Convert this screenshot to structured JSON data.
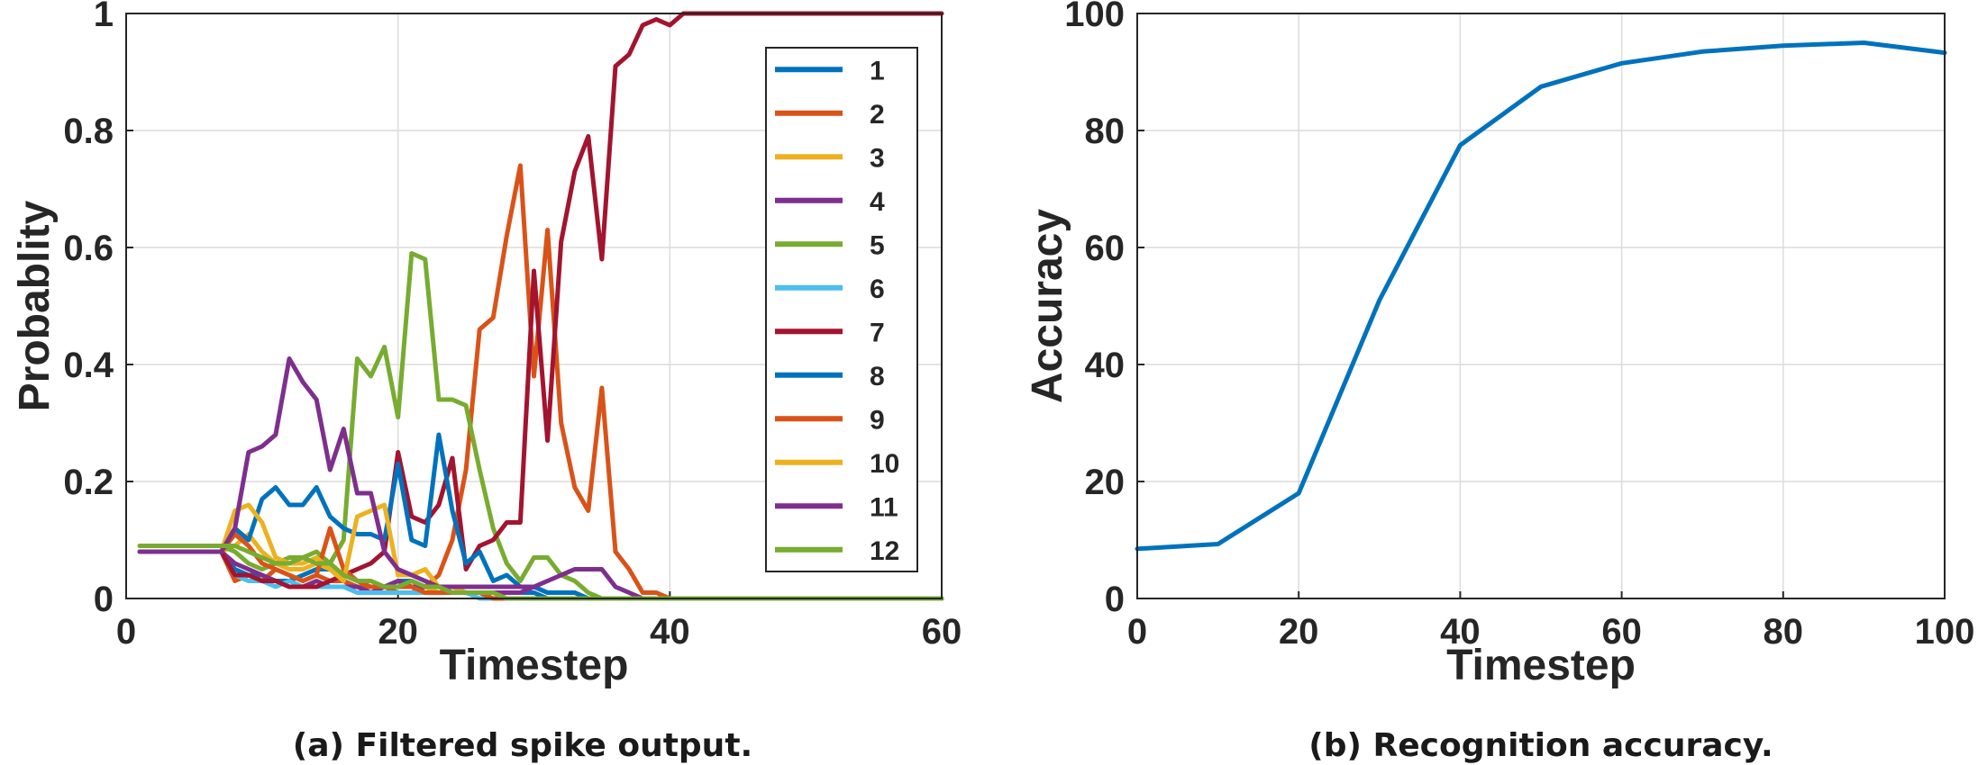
{
  "chart_data": [
    {
      "type": "line",
      "caption": "(a) Filtered spike output.",
      "xlabel": "Timestep",
      "ylabel": "Probablity",
      "xlim": [
        0,
        60
      ],
      "ylim": [
        0,
        1
      ],
      "xticks": [
        "0",
        "20",
        "40",
        "60"
      ],
      "yticks": [
        "0",
        "0.2",
        "0.4",
        "0.6",
        "0.8",
        "1"
      ],
      "grid": true,
      "legend_position": "top-right",
      "x": [
        1,
        2,
        3,
        4,
        5,
        6,
        7,
        8,
        9,
        10,
        11,
        12,
        13,
        14,
        15,
        16,
        17,
        18,
        19,
        20,
        21,
        22,
        23,
        24,
        25,
        26,
        27,
        28,
        29,
        30,
        31,
        32,
        33,
        34,
        35,
        36,
        37,
        38,
        39,
        40,
        41,
        42,
        43,
        44,
        45,
        46,
        47,
        48,
        49,
        50,
        51,
        52,
        53,
        54,
        55,
        56,
        57,
        58,
        59,
        60
      ],
      "series": [
        {
          "name": "1",
          "color": "#0072BD",
          "values": [
            0.08,
            0.08,
            0.08,
            0.08,
            0.08,
            0.08,
            0.08,
            0.05,
            0.04,
            0.04,
            0.03,
            0.03,
            0.04,
            0.05,
            0.05,
            0.03,
            0.02,
            0.02,
            0.02,
            0.03,
            0.03,
            0.02,
            0.02,
            0.01,
            0.01,
            0.01,
            0.01,
            0.01,
            0.01,
            0.01,
            0,
            0,
            0,
            0,
            0,
            0,
            0,
            0,
            0,
            0,
            0,
            0,
            0,
            0,
            0,
            0,
            0,
            0,
            0,
            0,
            0,
            0,
            0,
            0,
            0,
            0,
            0,
            0,
            0,
            0
          ]
        },
        {
          "name": "2",
          "color": "#D95319",
          "values": [
            0.08,
            0.08,
            0.08,
            0.08,
            0.08,
            0.08,
            0.08,
            0.03,
            0.04,
            0.03,
            0.05,
            0.04,
            0.03,
            0.04,
            0.03,
            0.03,
            0.02,
            0.02,
            0.02,
            0.01,
            0.01,
            0.02,
            0.04,
            0.1,
            0.22,
            0.46,
            0.48,
            0.62,
            0.74,
            0.38,
            0.63,
            0.3,
            0.19,
            0.15,
            0.36,
            0.08,
            0.05,
            0.01,
            0.01,
            0,
            0,
            0,
            0,
            0,
            0,
            0,
            0,
            0,
            0,
            0,
            0,
            0,
            0,
            0,
            0,
            0,
            0,
            0,
            0,
            0
          ]
        },
        {
          "name": "3",
          "color": "#EDB120",
          "values": [
            0.08,
            0.08,
            0.08,
            0.08,
            0.08,
            0.08,
            0.08,
            0.09,
            0.11,
            0.08,
            0.06,
            0.05,
            0.05,
            0.06,
            0.05,
            0.04,
            0.03,
            0.03,
            0.02,
            0.02,
            0.02,
            0.02,
            0.01,
            0.01,
            0.01,
            0.01,
            0,
            0,
            0,
            0,
            0,
            0,
            0,
            0,
            0,
            0,
            0,
            0,
            0,
            0,
            0,
            0,
            0,
            0,
            0,
            0,
            0,
            0,
            0,
            0,
            0,
            0,
            0,
            0,
            0,
            0,
            0,
            0,
            0,
            0
          ]
        },
        {
          "name": "4",
          "color": "#7E2F8E",
          "values": [
            0.08,
            0.08,
            0.08,
            0.08,
            0.08,
            0.08,
            0.08,
            0.06,
            0.05,
            0.04,
            0.03,
            0.02,
            0.02,
            0.03,
            0.02,
            0.02,
            0.02,
            0.01,
            0.02,
            0.03,
            0.02,
            0.02,
            0.02,
            0.01,
            0.01,
            0.01,
            0.01,
            0.01,
            0.01,
            0.02,
            0.01,
            0.01,
            0.01,
            0,
            0,
            0,
            0,
            0,
            0,
            0,
            0,
            0,
            0,
            0,
            0,
            0,
            0,
            0,
            0,
            0,
            0,
            0,
            0,
            0,
            0,
            0,
            0,
            0,
            0,
            0
          ]
        },
        {
          "name": "5",
          "color": "#77AC30",
          "values": [
            0.09,
            0.09,
            0.09,
            0.09,
            0.09,
            0.09,
            0.09,
            0.08,
            0.06,
            0.05,
            0.06,
            0.07,
            0.07,
            0.08,
            0.06,
            0.1,
            0.41,
            0.38,
            0.43,
            0.31,
            0.59,
            0.58,
            0.34,
            0.34,
            0.33,
            0.22,
            0.12,
            0.06,
            0.03,
            0.07,
            0.07,
            0.04,
            0.03,
            0.01,
            0,
            0,
            0,
            0,
            0,
            0,
            0,
            0,
            0,
            0,
            0,
            0,
            0,
            0,
            0,
            0,
            0,
            0,
            0,
            0,
            0,
            0,
            0,
            0,
            0,
            0
          ]
        },
        {
          "name": "6",
          "color": "#4DBEEE",
          "values": [
            0.08,
            0.08,
            0.08,
            0.08,
            0.08,
            0.08,
            0.08,
            0.04,
            0.03,
            0.03,
            0.02,
            0.03,
            0.02,
            0.02,
            0.02,
            0.02,
            0.01,
            0.01,
            0.01,
            0.01,
            0.01,
            0.01,
            0.01,
            0.01,
            0.01,
            0,
            0,
            0,
            0,
            0,
            0,
            0,
            0,
            0,
            0,
            0,
            0,
            0,
            0,
            0,
            0,
            0,
            0,
            0,
            0,
            0,
            0,
            0,
            0,
            0,
            0,
            0,
            0,
            0,
            0,
            0,
            0,
            0,
            0,
            0
          ]
        },
        {
          "name": "7",
          "color": "#A2142F",
          "values": [
            0.08,
            0.08,
            0.08,
            0.08,
            0.08,
            0.08,
            0.08,
            0.04,
            0.04,
            0.03,
            0.03,
            0.02,
            0.02,
            0.02,
            0.03,
            0.04,
            0.05,
            0.06,
            0.08,
            0.25,
            0.14,
            0.13,
            0.16,
            0.24,
            0.05,
            0.09,
            0.1,
            0.13,
            0.13,
            0.56,
            0.27,
            0.61,
            0.73,
            0.79,
            0.58,
            0.91,
            0.93,
            0.98,
            0.99,
            0.98,
            1,
            1,
            1,
            1,
            1,
            1,
            1,
            1,
            1,
            1,
            1,
            1,
            1,
            1,
            1,
            1,
            1,
            1,
            1,
            1
          ]
        },
        {
          "name": "8",
          "color": "#0072BD",
          "values": [
            0.08,
            0.08,
            0.08,
            0.08,
            0.08,
            0.08,
            0.08,
            0.12,
            0.1,
            0.17,
            0.19,
            0.16,
            0.16,
            0.19,
            0.14,
            0.12,
            0.11,
            0.11,
            0.1,
            0.23,
            0.1,
            0.09,
            0.28,
            0.15,
            0.06,
            0.08,
            0.03,
            0.04,
            0.02,
            0.02,
            0.01,
            0.01,
            0.01,
            0,
            0,
            0,
            0,
            0,
            0,
            0,
            0,
            0,
            0,
            0,
            0,
            0,
            0,
            0,
            0,
            0,
            0,
            0,
            0,
            0,
            0,
            0,
            0,
            0,
            0,
            0
          ]
        },
        {
          "name": "9",
          "color": "#D95319",
          "values": [
            0.08,
            0.08,
            0.08,
            0.08,
            0.08,
            0.08,
            0.08,
            0.11,
            0.09,
            0.06,
            0.05,
            0.04,
            0.03,
            0.04,
            0.12,
            0.05,
            0.03,
            0.02,
            0.02,
            0.02,
            0.02,
            0.01,
            0.01,
            0.01,
            0.01,
            0.01,
            0,
            0,
            0,
            0,
            0,
            0,
            0,
            0,
            0,
            0,
            0,
            0,
            0,
            0,
            0,
            0,
            0,
            0,
            0,
            0,
            0,
            0,
            0,
            0,
            0,
            0,
            0,
            0,
            0,
            0,
            0,
            0,
            0,
            0
          ]
        },
        {
          "name": "10",
          "color": "#EDB120",
          "values": [
            0.08,
            0.08,
            0.08,
            0.08,
            0.08,
            0.08,
            0.08,
            0.15,
            0.16,
            0.13,
            0.07,
            0.06,
            0.06,
            0.07,
            0.05,
            0.03,
            0.14,
            0.15,
            0.16,
            0.04,
            0.04,
            0.05,
            0.02,
            0.02,
            0.01,
            0.01,
            0.01,
            0,
            0,
            0,
            0,
            0,
            0,
            0,
            0,
            0,
            0,
            0,
            0,
            0,
            0,
            0,
            0,
            0,
            0,
            0,
            0,
            0,
            0,
            0,
            0,
            0,
            0,
            0,
            0,
            0,
            0,
            0,
            0,
            0
          ]
        },
        {
          "name": "11",
          "color": "#7E2F8E",
          "values": [
            0.08,
            0.08,
            0.08,
            0.08,
            0.08,
            0.08,
            0.08,
            0.12,
            0.25,
            0.26,
            0.28,
            0.41,
            0.37,
            0.34,
            0.22,
            0.29,
            0.18,
            0.18,
            0.08,
            0.05,
            0.04,
            0.03,
            0.02,
            0.02,
            0.02,
            0.02,
            0.02,
            0.02,
            0.02,
            0.02,
            0.03,
            0.04,
            0.05,
            0.05,
            0.05,
            0.02,
            0.01,
            0,
            0,
            0,
            0,
            0,
            0,
            0,
            0,
            0,
            0,
            0,
            0,
            0,
            0,
            0,
            0,
            0,
            0,
            0,
            0,
            0,
            0,
            0
          ]
        },
        {
          "name": "12",
          "color": "#77AC30",
          "values": [
            0.09,
            0.09,
            0.09,
            0.09,
            0.09,
            0.09,
            0.09,
            0.09,
            0.08,
            0.07,
            0.06,
            0.06,
            0.07,
            0.06,
            0.06,
            0.04,
            0.03,
            0.03,
            0.02,
            0.02,
            0.03,
            0.02,
            0.02,
            0.01,
            0.01,
            0.01,
            0.01,
            0,
            0,
            0,
            0,
            0,
            0,
            0,
            0,
            0,
            0,
            0,
            0,
            0,
            0,
            0,
            0,
            0,
            0,
            0,
            0,
            0,
            0,
            0,
            0,
            0,
            0,
            0,
            0,
            0,
            0,
            0,
            0,
            0
          ]
        }
      ]
    },
    {
      "type": "line",
      "caption": "(b) Recognition accuracy.",
      "xlabel": "Timestep",
      "ylabel": "Accuracy",
      "xlim": [
        0,
        100
      ],
      "ylim": [
        0,
        100
      ],
      "xticks": [
        "0",
        "20",
        "40",
        "60",
        "80",
        "100"
      ],
      "yticks": [
        "0",
        "20",
        "40",
        "60",
        "80",
        "100"
      ],
      "grid": true,
      "x": [
        0,
        10,
        20,
        30,
        40,
        50,
        60,
        70,
        80,
        90,
        100
      ],
      "series": [
        {
          "color": "#0072BD",
          "values": [
            8.5,
            9.3,
            18,
            51,
            77.5,
            87.5,
            91.5,
            93.5,
            94.5,
            95,
            93.3
          ]
        }
      ]
    }
  ]
}
